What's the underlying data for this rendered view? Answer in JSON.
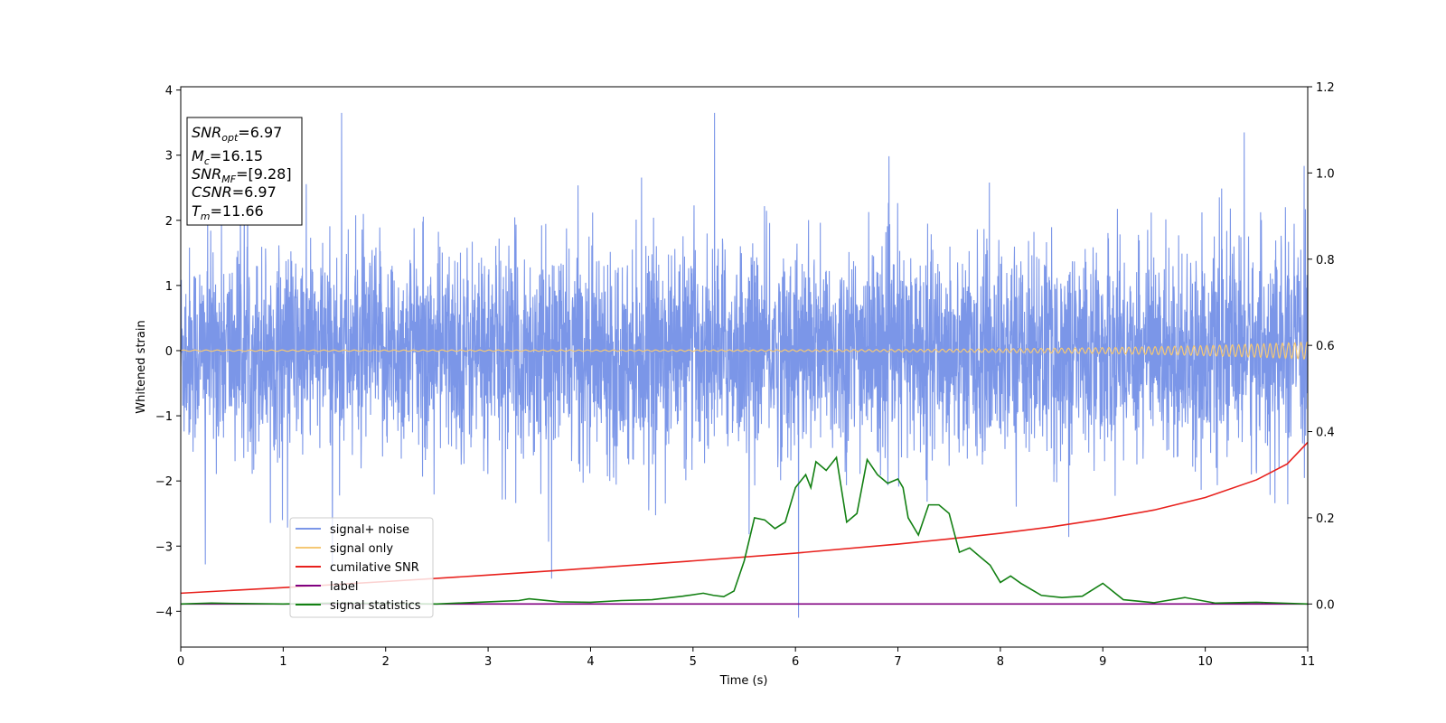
{
  "chart_data": {
    "type": "line",
    "xlabel": "Time (s)",
    "ylabel": "Whitened strain",
    "xlim": [
      0,
      11
    ],
    "ylim": [
      -4.55,
      4.05
    ],
    "y2lim": [
      -0.1,
      1.2
    ],
    "xticks": [
      0,
      1,
      2,
      3,
      4,
      5,
      6,
      7,
      8,
      9,
      10,
      11
    ],
    "yticks": [
      -4,
      -3,
      -2,
      -1,
      0,
      1,
      2,
      3,
      4
    ],
    "y2ticks": [
      "0.0",
      "0.2",
      "0.4",
      "0.6",
      "0.8",
      "1.0",
      "1.2"
    ],
    "grid": false,
    "legend_position": "lower-left",
    "noise": {
      "name": "signal+ noise",
      "color": "#7b96e8",
      "axis": "left",
      "duration_s": 11,
      "amplitude_range": [
        -4.1,
        3.65
      ],
      "peaks": [
        [
          1.57,
          3.65
        ],
        [
          5.21,
          3.65
        ],
        [
          6.03,
          -4.1
        ],
        [
          10.38,
          3.35
        ],
        [
          3.62,
          -3.5
        ],
        [
          0.24,
          -3.28
        ]
      ]
    },
    "signal_only": {
      "name": "signal only",
      "color": "#f5c875",
      "axis": "left",
      "amplitude_start": 0.01,
      "amplitude_end": 0.13
    },
    "cumulative_snr": {
      "name": "cumilative SNR",
      "color": "#e8211d",
      "axis": "right",
      "x": [
        0,
        1,
        2,
        3,
        4,
        5,
        6,
        7,
        7.5,
        8,
        8.5,
        9,
        9.5,
        10,
        10.5,
        10.8,
        11
      ],
      "y": [
        0.025,
        0.038,
        0.052,
        0.067,
        0.083,
        0.1,
        0.118,
        0.139,
        0.151,
        0.164,
        0.179,
        0.197,
        0.218,
        0.247,
        0.288,
        0.325,
        0.375
      ]
    },
    "label": {
      "name": "label",
      "color": "#800080",
      "axis": "right",
      "x": [
        0,
        11
      ],
      "y": [
        0.0,
        0.0
      ]
    },
    "signal_statistics": {
      "name": "signal statistics",
      "color": "#138013",
      "axis": "right",
      "x": [
        0,
        0.3,
        0.6,
        1,
        1.5,
        2,
        2.5,
        3,
        3.3,
        3.4,
        3.7,
        4,
        4.3,
        4.6,
        4.9,
        5.1,
        5.2,
        5.3,
        5.4,
        5.5,
        5.6,
        5.7,
        5.8,
        5.9,
        6.0,
        6.1,
        6.15,
        6.2,
        6.3,
        6.4,
        6.5,
        6.6,
        6.7,
        6.8,
        6.9,
        7.0,
        7.05,
        7.1,
        7.2,
        7.3,
        7.4,
        7.5,
        7.6,
        7.7,
        7.8,
        7.9,
        8.0,
        8.1,
        8.2,
        8.4,
        8.6,
        8.8,
        9.0,
        9.2,
        9.5,
        9.8,
        10.1,
        10.5,
        11
      ],
      "y": [
        0.0,
        0.002,
        0.001,
        0.0,
        0.002,
        0.001,
        0.0,
        0.005,
        0.008,
        0.012,
        0.005,
        0.004,
        0.008,
        0.01,
        0.018,
        0.025,
        0.02,
        0.017,
        0.03,
        0.1,
        0.2,
        0.195,
        0.175,
        0.19,
        0.27,
        0.3,
        0.27,
        0.33,
        0.31,
        0.34,
        0.19,
        0.21,
        0.335,
        0.3,
        0.28,
        0.29,
        0.27,
        0.2,
        0.16,
        0.23,
        0.23,
        0.21,
        0.12,
        0.13,
        0.11,
        0.09,
        0.05,
        0.065,
        0.048,
        0.02,
        0.015,
        0.018,
        0.048,
        0.01,
        0.003,
        0.015,
        0.002,
        0.004,
        0.0
      ]
    },
    "annotation": {
      "lines": [
        {
          "sym": "SNR",
          "sub": "opt",
          "value": "=6.97"
        },
        {
          "sym": "M",
          "sub": "c",
          "value": "=16.15"
        },
        {
          "sym": "SNR",
          "sub": "MF",
          "value": "=[9.28]"
        },
        {
          "sym": "CSNR",
          "sub": "",
          "value": "=6.97"
        },
        {
          "sym": "T",
          "sub": "m",
          "value": "=11.66"
        }
      ]
    }
  }
}
